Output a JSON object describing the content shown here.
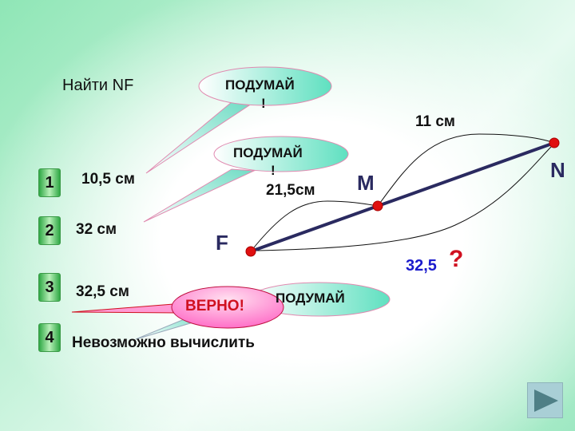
{
  "task": "Найти NF",
  "answers": [
    {
      "number": "1",
      "label": "10,5 см"
    },
    {
      "number": "2",
      "label": "32 см"
    },
    {
      "number": "3",
      "label": "32,5 см"
    },
    {
      "number": "4",
      "label": "Невозможно вычислить"
    }
  ],
  "callouts": {
    "think1": "ПОДУМАЙ",
    "think1_mark": "!",
    "think2": "ПОДУМАЙ",
    "think2_mark": "!",
    "think3": "ПОДУМАЙ",
    "correct": "ВЕРНО!"
  },
  "diagram": {
    "points": {
      "F": "F",
      "M": "M",
      "N": "N"
    },
    "segment_MN": "11 см",
    "segment_FM": "21,5см",
    "segment_FN_value": "32,5",
    "segment_FN_unknown": "?"
  },
  "colors": {
    "point": "#e01010",
    "segment": "#2a2a60",
    "answer_value": "#1a1acc",
    "question": "#d01020",
    "correct": "#d01020"
  },
  "nav": {
    "next_icon": "play-triangle-icon"
  }
}
